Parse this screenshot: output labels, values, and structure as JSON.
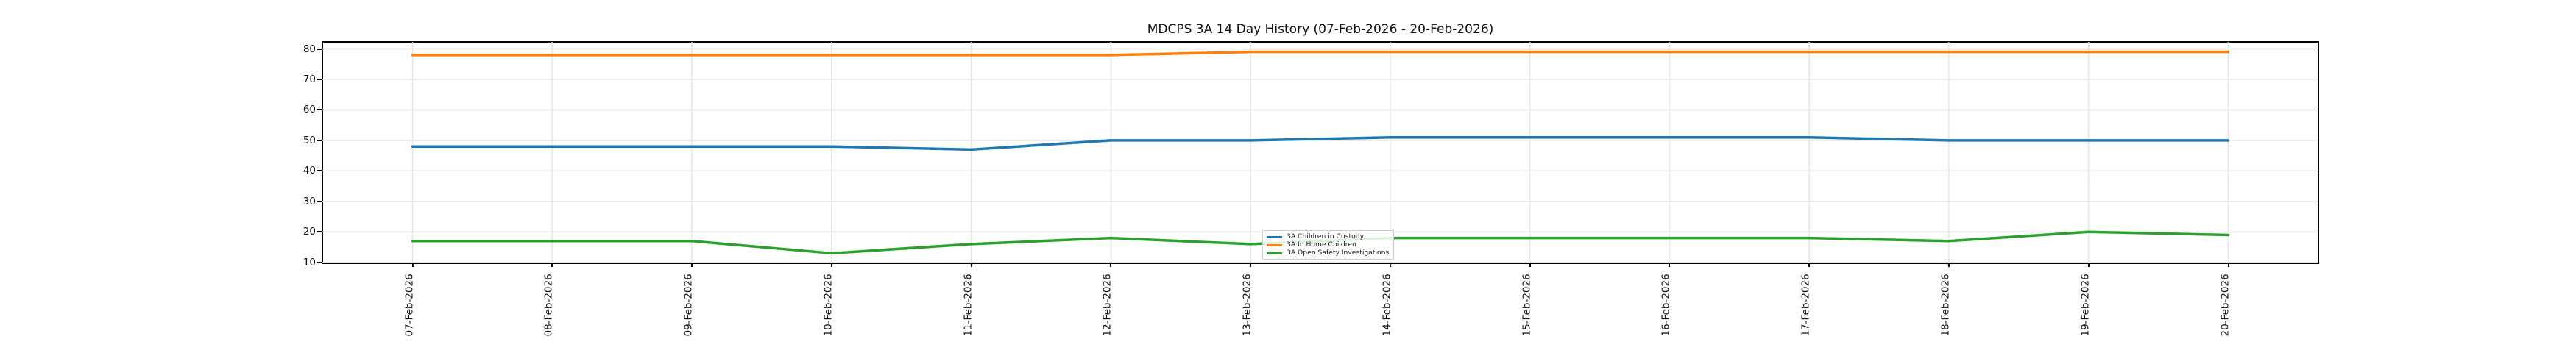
{
  "chart_data": {
    "type": "line",
    "title": "MDCPS 3A 14 Day History (07-Feb-2026 - 20-Feb-2026)",
    "xlabel": "",
    "ylabel": "",
    "categories": [
      "07-Feb-2026",
      "08-Feb-2026",
      "09-Feb-2026",
      "10-Feb-2026",
      "11-Feb-2026",
      "12-Feb-2026",
      "13-Feb-2026",
      "14-Feb-2026",
      "15-Feb-2026",
      "16-Feb-2026",
      "17-Feb-2026",
      "18-Feb-2026",
      "19-Feb-2026",
      "20-Feb-2026"
    ],
    "series": [
      {
        "name": "3A Children in Custody",
        "color": "#1f77b4",
        "values": [
          48,
          48,
          48,
          48,
          47,
          50,
          50,
          51,
          51,
          51,
          51,
          50,
          50,
          50
        ]
      },
      {
        "name": "3A In Home Children",
        "color": "#ff7f0e",
        "values": [
          78,
          78,
          78,
          78,
          78,
          78,
          79,
          79,
          79,
          79,
          79,
          79,
          79,
          79
        ]
      },
      {
        "name": "3A Open Safety Investigations",
        "color": "#2ca02c",
        "values": [
          17,
          17,
          17,
          13,
          16,
          18,
          16,
          18,
          18,
          18,
          18,
          17,
          20,
          19
        ]
      }
    ],
    "yticks": [
      10,
      20,
      30,
      40,
      50,
      60,
      70,
      80
    ],
    "ylim": [
      9.7,
      82.3
    ],
    "grid": true,
    "legend_position": "lower center",
    "x_tick_rotation": 90
  },
  "colors": {
    "background": "#ffffff",
    "grid": "#e6e6e6",
    "spine": "#000000",
    "text": "#111111"
  }
}
